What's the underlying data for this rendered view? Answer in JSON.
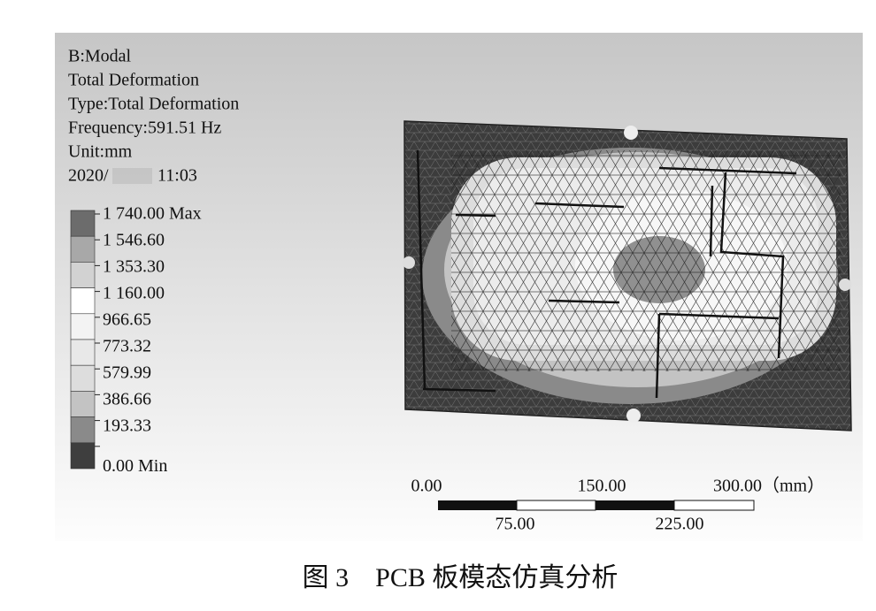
{
  "header": {
    "lines": [
      "B:Modal",
      "Total Deformation",
      "Type:Total Deformation",
      "Frequency:591.51 Hz",
      "Unit:mm"
    ],
    "date": "2020/",
    "time": "11:03"
  },
  "legend": {
    "entries": [
      {
        "label": "1 740.00 Max",
        "color": "#6c6c6c"
      },
      {
        "label": "1 546.60",
        "color": "#a8a8a8"
      },
      {
        "label": "1 353.30",
        "color": "#d2d2d2"
      },
      {
        "label": "1 160.00",
        "color": "#ffffff"
      },
      {
        "label": "966.65",
        "color": "#f3f3f3"
      },
      {
        "label": "773.32",
        "color": "#e8e8e8"
      },
      {
        "label": "579.99",
        "color": "#dddddd"
      },
      {
        "label": "386.66",
        "color": "#c3c3c3"
      },
      {
        "label": "193.33",
        "color": "#8a8a8a"
      },
      {
        "label": "0.00 Min",
        "color": "#3e3e3e"
      }
    ]
  },
  "scale": {
    "top": [
      "0.00",
      "150.00",
      "300.00（mm）"
    ],
    "bottom": [
      "75.00",
      "225.00"
    ]
  },
  "caption": "图 3　PCB 板模态仿真分析"
}
